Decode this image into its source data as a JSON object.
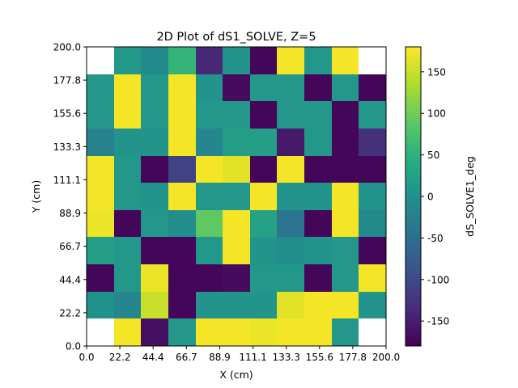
{
  "chart_data": {
    "type": "heatmap",
    "title": "2D Plot of dS1_SOLVE, Z=5",
    "xlabel": "X (cm)",
    "ylabel": "Y (cm)",
    "colorbar_label": "dS_SOLVE1_deg",
    "colormap": "viridis",
    "vmin": -180,
    "vmax": 180,
    "xlim": [
      0,
      200
    ],
    "ylim": [
      0,
      200
    ],
    "x_ticks": [
      "0.0",
      "22.2",
      "44.4",
      "66.7",
      "88.9",
      "111.1",
      "133.3",
      "155.6",
      "177.8",
      "200.0"
    ],
    "y_ticks": [
      "0.0",
      "22.2",
      "44.4",
      "66.7",
      "88.9",
      "111.1",
      "133.3",
      "155.6",
      "177.8",
      "200.0"
    ],
    "colorbar_ticks": [
      "-150",
      "-100",
      "-50",
      "0",
      "50",
      "100",
      "150"
    ],
    "colorbar_tick_values": [
      -150,
      -100,
      -50,
      0,
      50,
      100,
      150
    ],
    "grid_note": "rows listed from top (y 177.8-200) to bottom (y 0-22.2); null = empty cell",
    "values": [
      [
        null,
        10,
        -10,
        55,
        -140,
        5,
        -175,
        175,
        10,
        175,
        null
      ],
      [
        10,
        175,
        10,
        175,
        5,
        -170,
        10,
        10,
        -175,
        10,
        -175
      ],
      [
        10,
        175,
        10,
        175,
        10,
        10,
        -175,
        10,
        10,
        -175,
        10
      ],
      [
        -20,
        5,
        5,
        175,
        -15,
        20,
        20,
        -155,
        10,
        -175,
        -130
      ],
      [
        175,
        10,
        -175,
        -110,
        175,
        165,
        -175,
        175,
        -175,
        -175,
        -175
      ],
      [
        175,
        10,
        5,
        175,
        10,
        10,
        175,
        5,
        5,
        175,
        5
      ],
      [
        170,
        -175,
        10,
        -5,
        90,
        175,
        25,
        -40,
        -175,
        175,
        -10
      ],
      [
        20,
        10,
        -175,
        -175,
        10,
        175,
        5,
        -5,
        5,
        10,
        -175
      ],
      [
        -175,
        10,
        170,
        -175,
        -175,
        -170,
        10,
        10,
        -175,
        10,
        175
      ],
      [
        0,
        -15,
        150,
        -175,
        5,
        5,
        5,
        165,
        175,
        175,
        5
      ],
      [
        null,
        175,
        -165,
        10,
        175,
        175,
        170,
        175,
        175,
        10,
        null
      ]
    ]
  }
}
